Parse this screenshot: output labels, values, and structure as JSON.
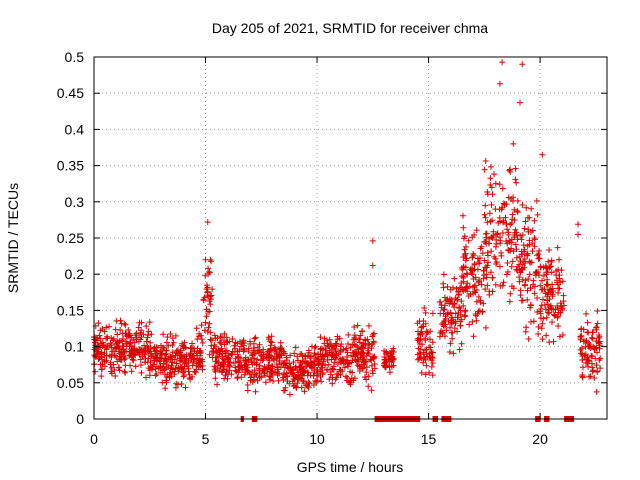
{
  "chart_data": {
    "type": "scatter",
    "title": "Day 205 of 2021, SRMTID for receiver chma",
    "xlabel": "GPS time / hours",
    "ylabel": "SRMTID / TECUs",
    "xlim": [
      0,
      23
    ],
    "ylim": [
      0,
      0.5
    ],
    "x_ticks": [
      0,
      5,
      10,
      15,
      20
    ],
    "x_tick_labels": [
      "0",
      "5",
      "10",
      "15",
      "20"
    ],
    "y_ticks": [
      0,
      0.05,
      0.1,
      0.15,
      0.2,
      0.25,
      0.3,
      0.35,
      0.4,
      0.45,
      0.5
    ],
    "y_tick_labels": [
      "0",
      "0.05",
      "0.1",
      "0.15",
      "0.2",
      "0.25",
      "0.3",
      "0.35",
      "0.4",
      "0.45",
      "0.5"
    ],
    "grid": true,
    "marker": "+",
    "color": "#dd0000",
    "series": [
      {
        "name": "SRMTID",
        "profile": [
          {
            "x0": 0.0,
            "x1": 1.0,
            "center": 0.095,
            "spread": 0.03
          },
          {
            "x0": 1.0,
            "x1": 2.5,
            "center": 0.098,
            "spread": 0.032
          },
          {
            "x0": 2.5,
            "x1": 4.5,
            "center": 0.082,
            "spread": 0.028
          },
          {
            "x0": 4.5,
            "x1": 4.9,
            "center": 0.095,
            "spread": 0.03
          },
          {
            "x0": 4.9,
            "x1": 5.3,
            "center": 0.16,
            "spread": 0.055
          },
          {
            "x0": 5.3,
            "x1": 6.6,
            "center": 0.085,
            "spread": 0.03
          },
          {
            "x0": 6.6,
            "x1": 8.5,
            "center": 0.08,
            "spread": 0.03
          },
          {
            "x0": 8.5,
            "x1": 10.0,
            "center": 0.068,
            "spread": 0.028
          },
          {
            "x0": 10.0,
            "x1": 12.6,
            "center": 0.085,
            "spread": 0.032
          },
          {
            "x0": 13.0,
            "x1": 13.5,
            "center": 0.08,
            "spread": 0.012
          },
          {
            "x0": 14.5,
            "x1": 15.2,
            "center": 0.1,
            "spread": 0.04
          },
          {
            "x0": 15.5,
            "x1": 16.5,
            "center": 0.14,
            "spread": 0.05
          },
          {
            "x0": 16.5,
            "x1": 17.5,
            "center": 0.2,
            "spread": 0.065
          },
          {
            "x0": 17.5,
            "x1": 19.0,
            "center": 0.25,
            "spread": 0.085
          },
          {
            "x0": 19.0,
            "x1": 20.0,
            "center": 0.21,
            "spread": 0.075
          },
          {
            "x0": 20.0,
            "x1": 21.1,
            "center": 0.17,
            "spread": 0.06
          },
          {
            "x0": 21.8,
            "x1": 22.7,
            "center": 0.095,
            "spread": 0.04
          }
        ],
        "peaks": [
          {
            "x": 5.1,
            "y": 0.272
          },
          {
            "x": 5.0,
            "y": 0.22
          },
          {
            "x": 12.5,
            "y": 0.246
          },
          {
            "x": 12.5,
            "y": 0.212
          },
          {
            "x": 18.2,
            "y": 0.463
          },
          {
            "x": 18.3,
            "y": 0.493
          },
          {
            "x": 19.2,
            "y": 0.49
          },
          {
            "x": 19.1,
            "y": 0.437
          },
          {
            "x": 18.8,
            "y": 0.38
          },
          {
            "x": 20.1,
            "y": 0.365
          },
          {
            "x": 21.7,
            "y": 0.269
          },
          {
            "x": 21.7,
            "y": 0.255
          }
        ],
        "zero_ranges": [
          [
            6.6,
            6.7
          ],
          [
            7.1,
            7.3
          ],
          [
            12.6,
            14.6
          ],
          [
            15.2,
            15.4
          ],
          [
            15.6,
            16.0
          ],
          [
            19.8,
            20.0
          ],
          [
            20.2,
            20.4
          ],
          [
            21.1,
            21.5
          ]
        ]
      }
    ]
  }
}
